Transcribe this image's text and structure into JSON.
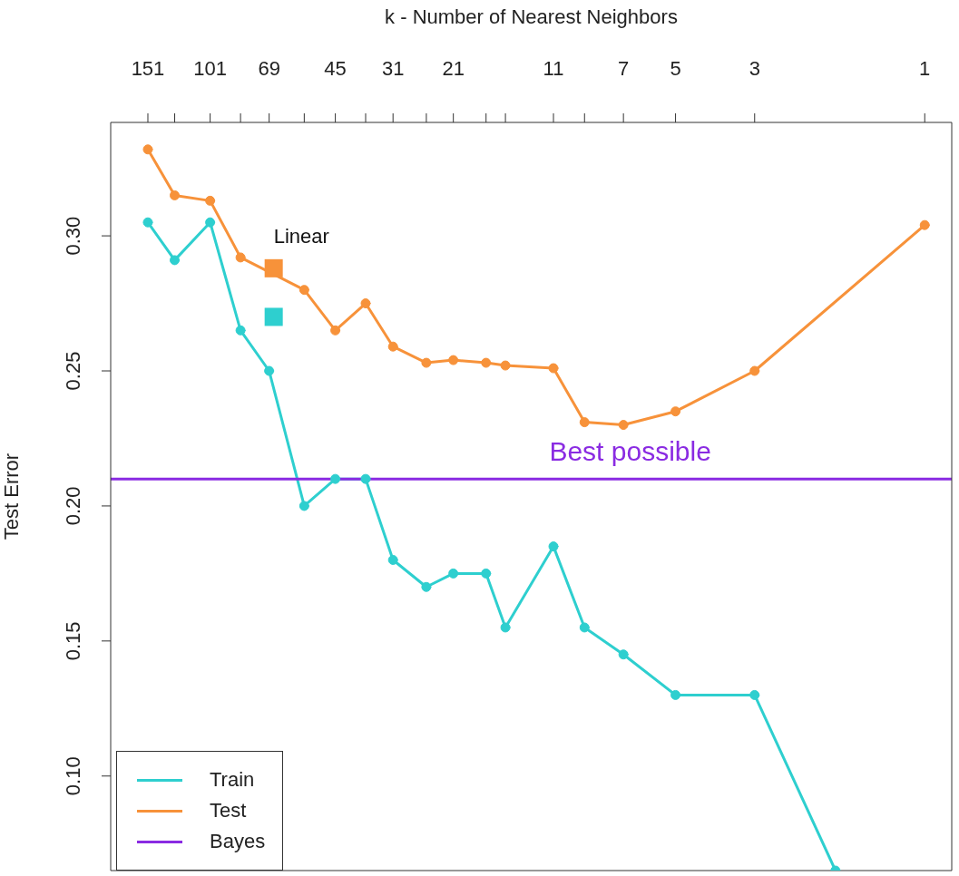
{
  "chart_data": {
    "type": "line",
    "xlabel": "k -  Number of Nearest Neighbors",
    "ylabel": "Test Error",
    "x": [
      151,
      127,
      101,
      83,
      69,
      55,
      45,
      37,
      31,
      25,
      21,
      17,
      15,
      11,
      9,
      7,
      5,
      3,
      1
    ],
    "series": [
      {
        "name": "Train",
        "color": "#2ecfcf",
        "marker": "circle",
        "x": [
          151,
          127,
          101,
          83,
          69,
          55,
          45,
          37,
          31,
          25,
          21,
          17,
          15,
          11,
          9,
          7,
          5,
          3,
          1.78
        ],
        "values": [
          0.305,
          0.291,
          0.305,
          0.265,
          0.25,
          0.2,
          0.21,
          0.21,
          0.18,
          0.17,
          0.175,
          0.175,
          0.155,
          0.185,
          0.155,
          0.145,
          0.13,
          0.13,
          0.065
        ]
      },
      {
        "name": "Test",
        "color": "#f7923a",
        "marker": "circle",
        "values": [
          0.332,
          0.315,
          0.313,
          0.292,
          null,
          0.28,
          0.265,
          0.275,
          0.259,
          0.253,
          0.254,
          0.253,
          0.252,
          0.251,
          0.231,
          0.23,
          0.235,
          0.25,
          0.304
        ]
      },
      {
        "name": "Bayes",
        "color": "#8a2be2",
        "marker": "none",
        "x": [
          192,
          0.84
        ],
        "values": [
          0.21,
          0.21
        ]
      },
      {
        "type": "scatter",
        "color": "#f7923a",
        "marker": "square",
        "x": [
          67
        ],
        "values": [
          0.288
        ]
      },
      {
        "type": "scatter",
        "color": "#2ecfcf",
        "marker": "square",
        "x": [
          67
        ],
        "values": [
          0.27
        ]
      }
    ],
    "annotations": [
      {
        "text": "Linear",
        "x": 67,
        "y": 0.288
      },
      {
        "text": "Best possible",
        "x": 6.7,
        "y": 0.21
      }
    ],
    "xlim": [
      192,
      0.84
    ],
    "xticks": [
      151,
      {
        "value": 127,
        "label": null
      },
      101,
      {
        "value": 83,
        "label": null
      },
      69,
      {
        "value": 55,
        "label": null
      },
      45,
      {
        "value": 37,
        "label": null
      },
      31,
      {
        "value": 25,
        "label": null
      },
      21,
      {
        "value": 17,
        "label": null
      },
      {
        "value": 15,
        "label": null
      },
      11,
      {
        "value": 9,
        "label": null
      },
      7,
      5,
      3,
      1
    ],
    "ylim": [
      0.065,
      0.342
    ],
    "yticks": [
      {
        "value": 0.1,
        "label": "0.10"
      },
      {
        "value": 0.15,
        "label": "0.15"
      },
      {
        "value": 0.2,
        "label": "0.20"
      },
      {
        "value": 0.25,
        "label": "0.25"
      },
      {
        "value": 0.3,
        "label": "0.30"
      }
    ],
    "log": "x",
    "grid": false,
    "legend": "bottom left",
    "line_style": "solid"
  }
}
